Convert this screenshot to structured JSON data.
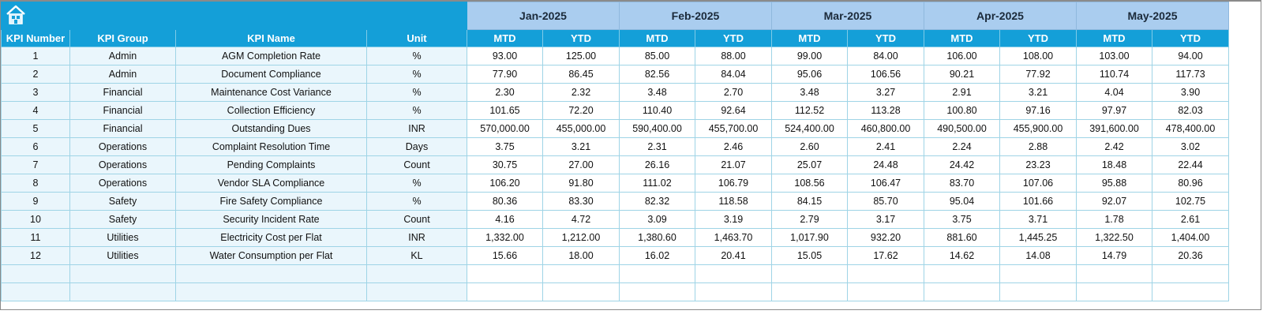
{
  "header": {
    "home_icon": "home-icon",
    "months": [
      "Jan-2025",
      "Feb-2025",
      "Mar-2025",
      "Apr-2025",
      "May-2025"
    ]
  },
  "columns": {
    "kpi_number": "KPI Number",
    "kpi_group": "KPI Group",
    "kpi_name": "KPI Name",
    "unit": "Unit",
    "mtd": "MTD",
    "ytd": "YTD"
  },
  "colors": {
    "banner": "#149fd8",
    "month_header": "#aacdef",
    "column_header": "#149fd8",
    "left_cells": "#eaf6fc",
    "grid": "#9fd4e6"
  },
  "rows": [
    {
      "num": "1",
      "group": "Admin",
      "name": "AGM Completion Rate",
      "unit": "%",
      "values": [
        "93.00",
        "125.00",
        "85.00",
        "88.00",
        "99.00",
        "84.00",
        "106.00",
        "108.00",
        "103.00",
        "94.00"
      ]
    },
    {
      "num": "2",
      "group": "Admin",
      "name": "Document Compliance",
      "unit": "%",
      "values": [
        "77.90",
        "86.45",
        "82.56",
        "84.04",
        "95.06",
        "106.56",
        "90.21",
        "77.92",
        "110.74",
        "117.73"
      ]
    },
    {
      "num": "3",
      "group": "Financial",
      "name": "Maintenance Cost Variance",
      "unit": "%",
      "values": [
        "2.30",
        "2.32",
        "3.48",
        "2.70",
        "3.48",
        "3.27",
        "2.91",
        "3.21",
        "4.04",
        "3.90"
      ]
    },
    {
      "num": "4",
      "group": "Financial",
      "name": "Collection Efficiency",
      "unit": "%",
      "values": [
        "101.65",
        "72.20",
        "110.40",
        "92.64",
        "112.52",
        "113.28",
        "100.80",
        "97.16",
        "97.97",
        "82.03"
      ]
    },
    {
      "num": "5",
      "group": "Financial",
      "name": "Outstanding Dues",
      "unit": "INR",
      "values": [
        "570,000.00",
        "455,000.00",
        "590,400.00",
        "455,700.00",
        "524,400.00",
        "460,800.00",
        "490,500.00",
        "455,900.00",
        "391,600.00",
        "478,400.00"
      ]
    },
    {
      "num": "6",
      "group": "Operations",
      "name": "Complaint Resolution Time",
      "unit": "Days",
      "values": [
        "3.75",
        "3.21",
        "2.31",
        "2.46",
        "2.60",
        "2.41",
        "2.24",
        "2.88",
        "2.42",
        "3.02"
      ]
    },
    {
      "num": "7",
      "group": "Operations",
      "name": "Pending Complaints",
      "unit": "Count",
      "values": [
        "30.75",
        "27.00",
        "26.16",
        "21.07",
        "25.07",
        "24.48",
        "24.42",
        "23.23",
        "18.48",
        "22.44"
      ]
    },
    {
      "num": "8",
      "group": "Operations",
      "name": "Vendor SLA Compliance",
      "unit": "%",
      "values": [
        "106.20",
        "91.80",
        "111.02",
        "106.79",
        "108.56",
        "106.47",
        "83.70",
        "107.06",
        "95.88",
        "80.96"
      ]
    },
    {
      "num": "9",
      "group": "Safety",
      "name": "Fire Safety Compliance",
      "unit": "%",
      "values": [
        "80.36",
        "83.30",
        "82.32",
        "118.58",
        "84.15",
        "85.70",
        "95.04",
        "101.66",
        "92.07",
        "102.75"
      ]
    },
    {
      "num": "10",
      "group": "Safety",
      "name": "Security Incident Rate",
      "unit": "Count",
      "values": [
        "4.16",
        "4.72",
        "3.09",
        "3.19",
        "2.79",
        "3.17",
        "3.75",
        "3.71",
        "1.78",
        "2.61"
      ]
    },
    {
      "num": "11",
      "group": "Utilities",
      "name": "Electricity Cost per Flat",
      "unit": "INR",
      "values": [
        "1,332.00",
        "1,212.00",
        "1,380.60",
        "1,463.70",
        "1,017.90",
        "932.20",
        "881.60",
        "1,445.25",
        "1,322.50",
        "1,404.00"
      ]
    },
    {
      "num": "12",
      "group": "Utilities",
      "name": "Water Consumption per Flat",
      "unit": "KL",
      "values": [
        "15.66",
        "18.00",
        "16.02",
        "20.41",
        "15.05",
        "17.62",
        "14.62",
        "14.08",
        "14.79",
        "20.36"
      ]
    }
  ]
}
